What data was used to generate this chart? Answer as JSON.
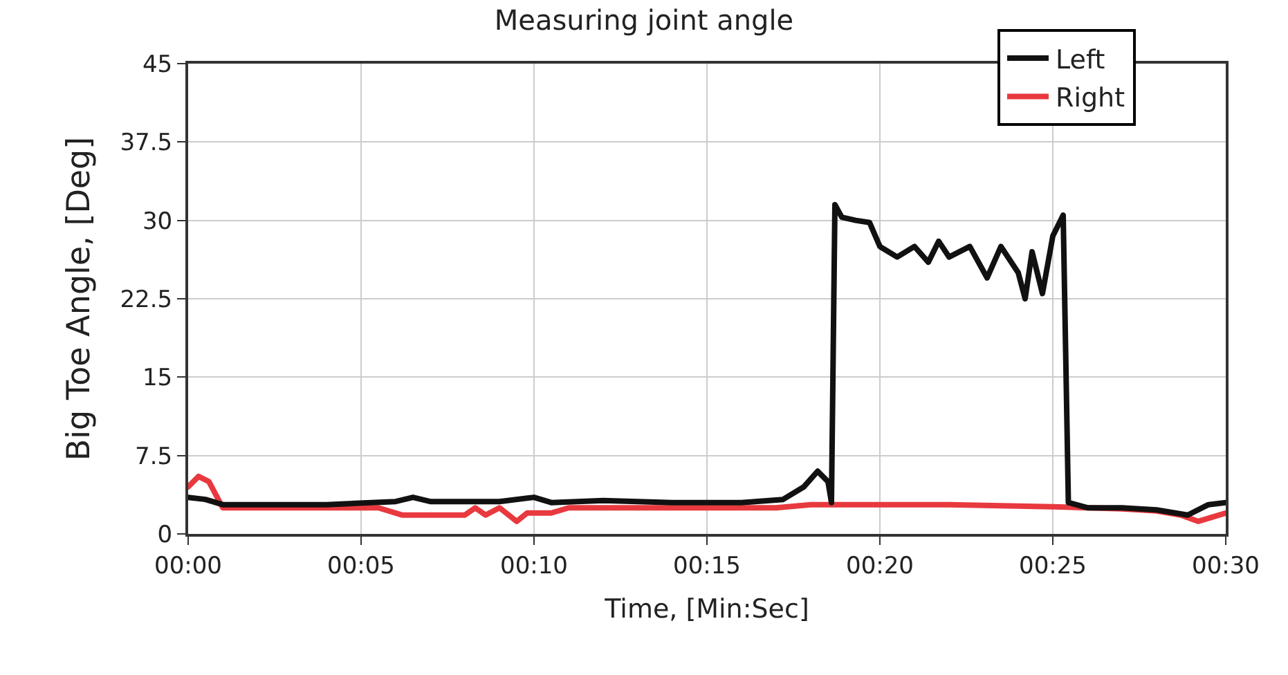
{
  "chart_data": {
    "type": "line",
    "title": "Measuring joint angle",
    "xlabel": "Time, [Min:Sec]",
    "ylabel": "Big Toe Angle, [Deg]",
    "xlim": [
      0,
      30
    ],
    "xticks": [
      {
        "value": 0,
        "label": "00:00"
      },
      {
        "value": 5,
        "label": "00:05"
      },
      {
        "value": 10,
        "label": "00:10"
      },
      {
        "value": 15,
        "label": "00:15"
      },
      {
        "value": 20,
        "label": "00:20"
      },
      {
        "value": 25,
        "label": "00:25"
      },
      {
        "value": 30,
        "label": "00:30"
      }
    ],
    "ylim": [
      0,
      45
    ],
    "yticks": [
      0,
      7.5,
      15,
      22.5,
      30,
      37.5,
      45
    ],
    "grid": true,
    "legend": "top right",
    "line_style": "solid",
    "series": [
      {
        "name": "Right",
        "color": "#e8393f",
        "x": [
          0,
          0.3,
          0.6,
          1.0,
          2,
          4,
          5.5,
          6.2,
          7,
          8,
          8.3,
          8.6,
          9,
          9.5,
          9.8,
          10.5,
          11,
          13,
          15,
          17,
          18,
          20,
          22,
          25,
          26,
          27,
          28,
          28.7,
          29.2,
          29.6,
          30
        ],
        "values": [
          4.5,
          5.5,
          5,
          2.5,
          2.5,
          2.5,
          2.5,
          1.8,
          1.8,
          1.8,
          2.5,
          1.8,
          2.5,
          1.2,
          2,
          2,
          2.5,
          2.5,
          2.5,
          2.5,
          2.8,
          2.8,
          2.8,
          2.6,
          2.5,
          2.4,
          2.2,
          1.8,
          1.2,
          1.6,
          2
        ]
      },
      {
        "name": "Left",
        "color": "#111111",
        "x": [
          0,
          0.5,
          1.0,
          2,
          4,
          6,
          6.5,
          7,
          9,
          10,
          10.5,
          12,
          14,
          16,
          17.2,
          17.8,
          18.2,
          18.5,
          18.6,
          18.7,
          18.9,
          19.3,
          19.7,
          20,
          20.5,
          21,
          21.4,
          21.7,
          22,
          22.6,
          23.1,
          23.5,
          24,
          24.2,
          24.4,
          24.7,
          25,
          25.3,
          25.45,
          26,
          27,
          28,
          28.9,
          29.5,
          30
        ],
        "values": [
          3.5,
          3.3,
          2.8,
          2.8,
          2.8,
          3.1,
          3.5,
          3.1,
          3.1,
          3.5,
          3,
          3.2,
          3,
          3,
          3.3,
          4.5,
          6,
          5,
          3,
          31.5,
          30.3,
          30,
          29.8,
          27.5,
          26.5,
          27.5,
          26,
          28,
          26.5,
          27.5,
          24.5,
          27.5,
          25,
          22.5,
          27,
          23,
          28.5,
          30.5,
          3,
          2.5,
          2.5,
          2.3,
          1.8,
          2.8,
          3
        ]
      }
    ]
  }
}
